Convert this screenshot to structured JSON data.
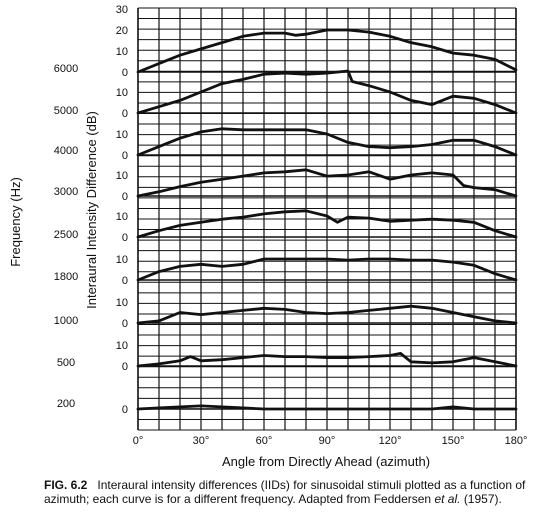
{
  "chart_data": {
    "type": "line",
    "ylabel_outer": "Frequency (Hz)",
    "ylabel_inner": "Interaural Intensity Difference (dB)",
    "xlabel": "Angle from Directly Ahead (azimuth)",
    "x_ticks": [
      "0°",
      "30°",
      "60°",
      "90°",
      "120°",
      "150°",
      "180°"
    ],
    "xlim": [
      0,
      180
    ],
    "grid": true,
    "panels": [
      {
        "frequency": "6000",
        "y_ticks": [
          "30",
          "20",
          "10",
          "0"
        ],
        "x": [
          0,
          10,
          20,
          30,
          40,
          50,
          60,
          70,
          75,
          80,
          90,
          100,
          110,
          120,
          130,
          140,
          150,
          160,
          170,
          180
        ],
        "values": [
          0,
          4,
          8,
          11,
          14,
          17,
          18.5,
          18.5,
          17.5,
          18,
          20,
          20,
          19,
          17,
          14,
          12,
          9,
          8,
          6,
          1
        ]
      },
      {
        "frequency": "5000",
        "y_ticks": [
          "10",
          "0"
        ],
        "x": [
          0,
          10,
          20,
          30,
          40,
          50,
          60,
          70,
          80,
          90,
          100,
          102,
          110,
          120,
          130,
          140,
          150,
          160,
          170,
          180
        ],
        "values": [
          0,
          3,
          6,
          10,
          14,
          16,
          18.5,
          19,
          18.5,
          19,
          20,
          15,
          13,
          10,
          6,
          4,
          8,
          7,
          4,
          0
        ]
      },
      {
        "frequency": "4000",
        "y_ticks": [
          "10",
          "0"
        ],
        "x": [
          0,
          10,
          20,
          30,
          40,
          50,
          60,
          70,
          80,
          90,
          100,
          110,
          120,
          130,
          140,
          150,
          160,
          170,
          180
        ],
        "values": [
          0,
          4,
          8,
          11,
          12.5,
          12,
          12,
          12,
          12,
          10,
          6,
          4,
          3.5,
          4,
          5,
          7,
          7,
          4,
          0
        ]
      },
      {
        "frequency": "3000",
        "y_ticks": [
          "10",
          "0"
        ],
        "x": [
          0,
          10,
          20,
          30,
          40,
          50,
          60,
          70,
          80,
          90,
          100,
          110,
          120,
          130,
          140,
          150,
          155,
          160,
          170,
          180
        ],
        "values": [
          0,
          2,
          4.5,
          6.5,
          8,
          9.5,
          11,
          11.5,
          12.5,
          9.5,
          10,
          11.5,
          8,
          10,
          11,
          10,
          5,
          4,
          3,
          0
        ]
      },
      {
        "frequency": "2500",
        "y_ticks": [
          "10",
          "0"
        ],
        "x": [
          0,
          10,
          20,
          30,
          40,
          50,
          60,
          70,
          80,
          90,
          95,
          100,
          110,
          120,
          130,
          140,
          150,
          160,
          170,
          180
        ],
        "values": [
          0,
          3,
          5.5,
          7,
          8.5,
          9.5,
          11,
          12,
          12.5,
          10,
          7,
          9.5,
          9,
          7.5,
          8,
          8.5,
          8,
          7,
          3,
          0
        ]
      },
      {
        "frequency": "1800",
        "y_ticks": [
          "10",
          "0"
        ],
        "x": [
          0,
          10,
          20,
          30,
          40,
          50,
          60,
          70,
          80,
          90,
          100,
          110,
          120,
          130,
          140,
          150,
          160,
          170,
          180
        ],
        "values": [
          0,
          4,
          6.5,
          7.5,
          6.5,
          7.5,
          10,
          10,
          10,
          10,
          9.5,
          10,
          10,
          9.5,
          9.5,
          8.5,
          7,
          3,
          0
        ]
      },
      {
        "frequency": "1000",
        "y_ticks": [
          "10",
          "0"
        ],
        "x": [
          0,
          10,
          20,
          30,
          40,
          50,
          60,
          70,
          80,
          90,
          100,
          110,
          120,
          130,
          140,
          150,
          160,
          170,
          180
        ],
        "values": [
          0,
          1,
          5,
          4,
          5,
          6,
          7,
          6.5,
          5,
          4.5,
          5,
          6,
          7,
          8,
          7,
          5,
          3,
          1,
          0
        ]
      },
      {
        "frequency": "500",
        "y_ticks": [
          "10",
          "0"
        ],
        "x": [
          0,
          10,
          20,
          25,
          30,
          40,
          50,
          60,
          70,
          80,
          90,
          100,
          110,
          120,
          125,
          130,
          140,
          150,
          160,
          170,
          180
        ],
        "values": [
          0,
          1,
          2.5,
          4.5,
          2.5,
          3,
          4,
          5,
          4.5,
          4.5,
          4,
          4,
          4.5,
          5,
          6,
          2,
          1.5,
          2,
          4,
          2,
          0
        ]
      },
      {
        "frequency": "200",
        "y_ticks": [
          "0"
        ],
        "x": [
          0,
          10,
          20,
          30,
          40,
          50,
          60,
          70,
          80,
          90,
          100,
          110,
          120,
          130,
          140,
          150,
          160,
          170,
          180
        ],
        "values": [
          0,
          0.5,
          1,
          1.5,
          1,
          0.5,
          0,
          0,
          0,
          0,
          0,
          0,
          0,
          0,
          0,
          1,
          0,
          0,
          0
        ]
      }
    ]
  },
  "caption": {
    "label": "FIG. 6.2",
    "text": "Interaural intensity differences (IIDs) for sinusoidal stimuli plotted as a function of azimuth; each curve is for a different frequency. Adapted from Feddersen",
    "etal": "et al.",
    "year": "(1957)."
  }
}
